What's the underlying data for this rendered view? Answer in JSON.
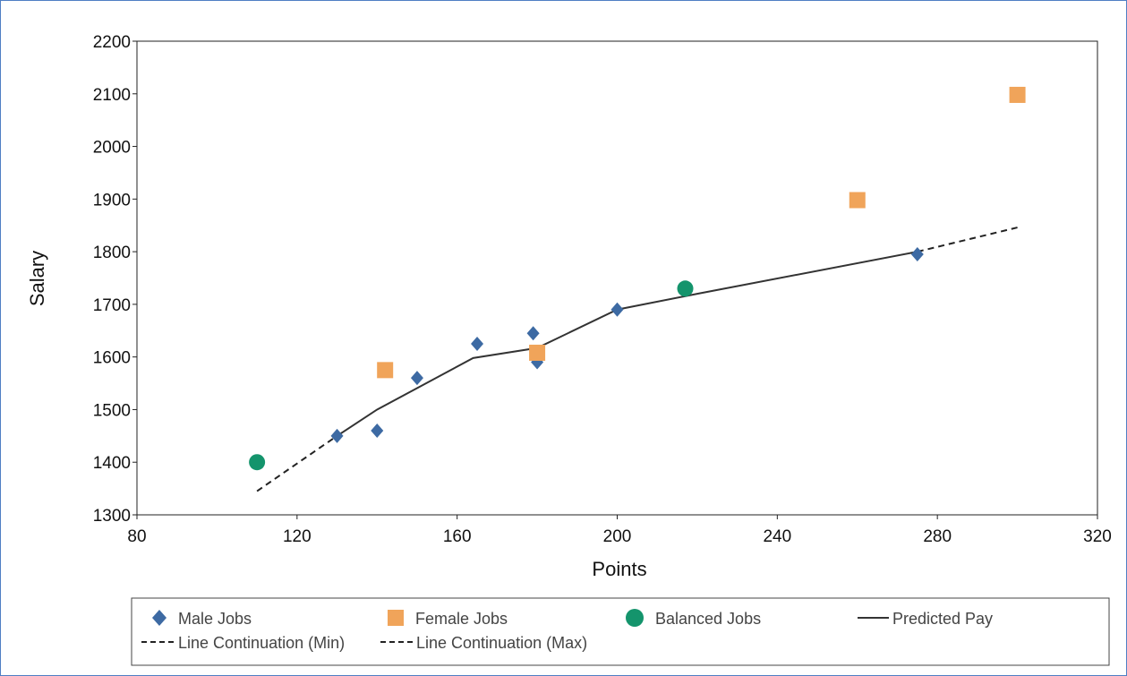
{
  "chart_data": {
    "type": "scatter",
    "title": "",
    "xlabel": "Points",
    "ylabel": "Salary",
    "xlim": [
      80,
      320
    ],
    "ylim": [
      1300,
      2200
    ],
    "xticks": [
      "80",
      "120",
      "160",
      "200",
      "240",
      "280",
      "320"
    ],
    "yticks": [
      "1300",
      "1400",
      "1500",
      "1600",
      "1700",
      "1800",
      "1900",
      "2000",
      "2100",
      "2200"
    ],
    "grid": false,
    "legend_position": "bottom",
    "series": [
      {
        "name": "Male Jobs",
        "kind": "scatter",
        "marker": "diamond",
        "color": "#3d6aa3",
        "points": [
          [
            130,
            1450
          ],
          [
            140,
            1460
          ],
          [
            150,
            1560
          ],
          [
            165,
            1625
          ],
          [
            179,
            1645
          ],
          [
            180,
            1590
          ],
          [
            200,
            1690
          ],
          [
            275,
            1795
          ]
        ]
      },
      {
        "name": "Female Jobs",
        "kind": "scatter",
        "marker": "square",
        "color": "#f0a45a",
        "points": [
          [
            142,
            1575
          ],
          [
            180,
            1608
          ],
          [
            260,
            1898
          ],
          [
            300,
            2098
          ]
        ]
      },
      {
        "name": "Balanced Jobs",
        "kind": "scatter",
        "marker": "circle",
        "color": "#14946c",
        "points": [
          [
            110,
            1400
          ],
          [
            217,
            1730
          ]
        ]
      },
      {
        "name": "Predicted Pay",
        "kind": "line",
        "style": "solid",
        "color": "#333333",
        "points": [
          [
            130,
            1450
          ],
          [
            140,
            1500
          ],
          [
            164,
            1598
          ],
          [
            180,
            1617
          ],
          [
            200,
            1690
          ],
          [
            220,
            1720
          ],
          [
            275,
            1800
          ]
        ]
      },
      {
        "name": "Line Continuation (Min)",
        "kind": "line",
        "style": "dashed",
        "color": "#222222",
        "points": [
          [
            110,
            1345
          ],
          [
            130,
            1450
          ]
        ]
      },
      {
        "name": "Line Continuation (Max)",
        "kind": "line",
        "style": "dashed",
        "color": "#222222",
        "points": [
          [
            275,
            1800
          ],
          [
            300,
            1846
          ]
        ]
      }
    ]
  }
}
